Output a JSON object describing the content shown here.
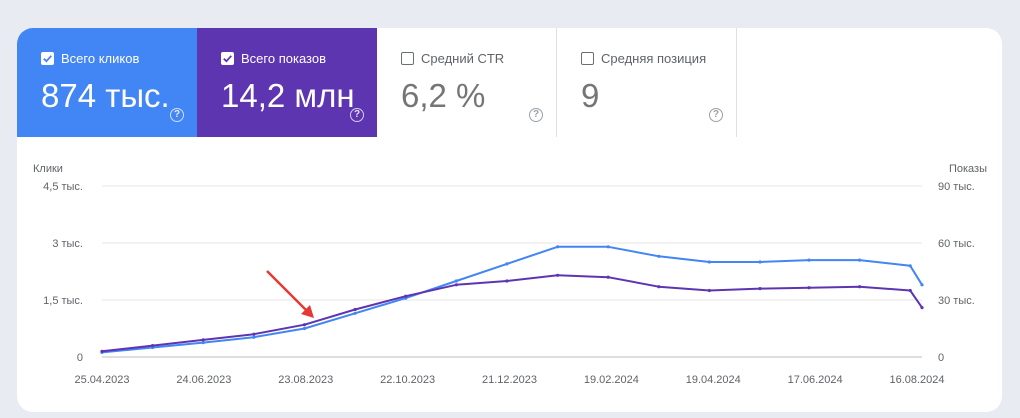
{
  "metrics": {
    "clicks": {
      "label": "Всего кликов",
      "value": "874 тыс.",
      "checked": true,
      "color": "#4285f4"
    },
    "impressions": {
      "label": "Всего показов",
      "value": "14,2 млн",
      "checked": true,
      "color": "#5e35b1"
    },
    "ctr": {
      "label": "Средний CTR",
      "value": "6,2 %",
      "checked": false
    },
    "position": {
      "label": "Средняя позиция",
      "value": "9",
      "checked": false
    },
    "help_glyph": "?"
  },
  "chart_data": {
    "type": "line",
    "ylabel_left": "Клики",
    "ylabel_right": "Показы",
    "left_ticks": [
      "0",
      "1,5 тыс.",
      "3 тыс.",
      "4,5 тыс."
    ],
    "right_ticks": [
      "0",
      "30 тыс.",
      "60 тыс.",
      "90 тыс."
    ],
    "left_ylim": [
      0,
      4500
    ],
    "right_ylim": [
      0,
      90000
    ],
    "x_tick_labels": [
      "25.04.2023",
      "24.06.2023",
      "23.08.2023",
      "22.10.2023",
      "21.12.2023",
      "19.02.2024",
      "19.04.2024",
      "17.06.2024",
      "16.08.2024"
    ],
    "x_range": [
      "2023-04-25",
      "2024-08-23"
    ],
    "series": [
      {
        "name": "Клики",
        "axis": "left",
        "color": "#4285f4",
        "points": [
          [
            "2023-04-25",
            120
          ],
          [
            "2023-05-25",
            250
          ],
          [
            "2023-06-24",
            380
          ],
          [
            "2023-07-24",
            520
          ],
          [
            "2023-08-23",
            750
          ],
          [
            "2023-09-22",
            1150
          ],
          [
            "2023-10-22",
            1550
          ],
          [
            "2023-11-21",
            2000
          ],
          [
            "2023-12-21",
            2450
          ],
          [
            "2024-01-20",
            2900
          ],
          [
            "2024-02-19",
            2900
          ],
          [
            "2024-03-20",
            2650
          ],
          [
            "2024-04-19",
            2500
          ],
          [
            "2024-05-19",
            2500
          ],
          [
            "2024-06-17",
            2550
          ],
          [
            "2024-07-17",
            2550
          ],
          [
            "2024-08-16",
            2400
          ],
          [
            "2024-08-23",
            1900
          ]
        ]
      },
      {
        "name": "Показы",
        "axis": "right",
        "color": "#5e35b1",
        "points": [
          [
            "2023-04-25",
            3000
          ],
          [
            "2023-05-25",
            6000
          ],
          [
            "2023-06-24",
            9000
          ],
          [
            "2023-07-24",
            12000
          ],
          [
            "2023-08-23",
            17000
          ],
          [
            "2023-09-22",
            25000
          ],
          [
            "2023-10-22",
            32000
          ],
          [
            "2023-11-21",
            38000
          ],
          [
            "2023-12-21",
            40000
          ],
          [
            "2024-01-20",
            43000
          ],
          [
            "2024-02-19",
            42000
          ],
          [
            "2024-03-20",
            37000
          ],
          [
            "2024-04-19",
            35000
          ],
          [
            "2024-05-19",
            36000
          ],
          [
            "2024-06-17",
            36500
          ],
          [
            "2024-07-17",
            37000
          ],
          [
            "2024-08-16",
            35000
          ],
          [
            "2024-08-23",
            26000
          ]
        ]
      }
    ],
    "grid": true
  }
}
